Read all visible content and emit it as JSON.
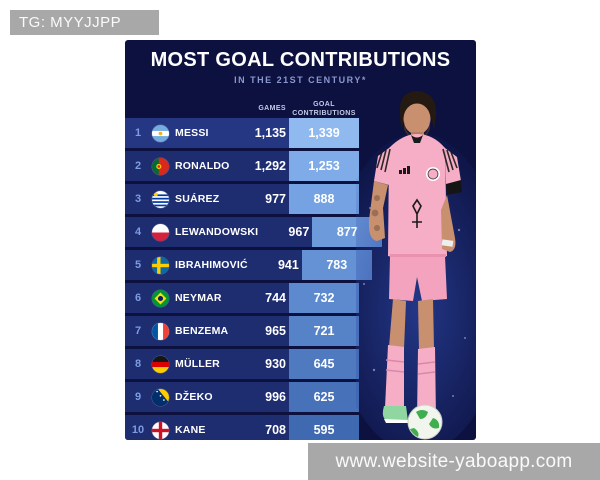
{
  "watermarks": {
    "telegram": "TG: MYYJJPP",
    "website": "www.website-yaboapp.com"
  },
  "header": {
    "title": "MOST GOAL CONTRIBUTIONS",
    "subtitle": "IN THE 21ST CENTURY*"
  },
  "table_headers": {
    "games": "GAMES",
    "contributions_line1": "GOAL",
    "contributions_line2": "CONTRIBUTIONS"
  },
  "chart_data": {
    "type": "table",
    "title": "MOST GOAL CONTRIBUTIONS",
    "subtitle": "IN THE 21ST CENTURY*",
    "columns": [
      "RANK",
      "FLAG",
      "PLAYER",
      "GAMES",
      "GOAL CONTRIBUTIONS"
    ],
    "rows": [
      {
        "rank": "1",
        "flag": "argentina",
        "player": "MESSI",
        "games": "1,135",
        "contributions": "1,339",
        "box_color": "#8fb9ef",
        "highlight": true
      },
      {
        "rank": "2",
        "flag": "portugal",
        "player": "RONALDO",
        "games": "1,292",
        "contributions": "1,253",
        "box_color": "#7fabe8"
      },
      {
        "rank": "3",
        "flag": "uruguay",
        "player": "SUÁREZ",
        "games": "977",
        "contributions": "888",
        "box_color": "#74a2e2"
      },
      {
        "rank": "4",
        "flag": "poland",
        "player": "LEWANDOWSKI",
        "games": "967",
        "contributions": "877",
        "box_color": "#6c9adb"
      },
      {
        "rank": "5",
        "flag": "sweden",
        "player": "IBRAHIMOVIĆ",
        "games": "941",
        "contributions": "783",
        "box_color": "#6492d5"
      },
      {
        "rank": "6",
        "flag": "brazil",
        "player": "NEYMAR",
        "games": "744",
        "contributions": "732",
        "box_color": "#5d8ace"
      },
      {
        "rank": "7",
        "flag": "france",
        "player": "BENZEMA",
        "games": "965",
        "contributions": "721",
        "box_color": "#5682c7"
      },
      {
        "rank": "8",
        "flag": "germany",
        "player": "MÜLLER",
        "games": "930",
        "contributions": "645",
        "box_color": "#4f7ac0"
      },
      {
        "rank": "9",
        "flag": "bosnia",
        "player": "DŽEKO",
        "games": "996",
        "contributions": "625",
        "box_color": "#4771b8"
      },
      {
        "rank": "10",
        "flag": "england",
        "player": "KANE",
        "games": "708",
        "contributions": "595",
        "box_color": "#3f69b0"
      }
    ]
  },
  "colors": {
    "panel_bg": "#0c1140",
    "row_bg": "#1e2c70",
    "row_highlight_bg": "#253683",
    "rank_text": "#7d9ce2",
    "subtitle_text": "#8b98cf",
    "column_header_text": "#c2cbe8",
    "watermark_bg": "#a8a8a8"
  },
  "photo": {
    "alt": "messi-inter-miami-pink-kit-with-ball"
  }
}
